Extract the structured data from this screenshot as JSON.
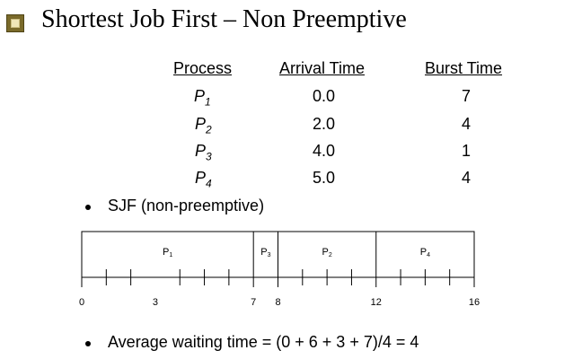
{
  "title": "Shortest Job First – Non Preemptive",
  "table": {
    "headers": [
      "Process",
      "Arrival Time",
      "Burst Time"
    ],
    "rows": [
      {
        "process": "P",
        "sub": "1",
        "arrival": "0.0",
        "burst": "7"
      },
      {
        "process": "P",
        "sub": "2",
        "arrival": "2.0",
        "burst": "4"
      },
      {
        "process": "P",
        "sub": "3",
        "arrival": "4.0",
        "burst": "1"
      },
      {
        "process": "P",
        "sub": "4",
        "arrival": "5.0",
        "burst": "4"
      }
    ]
  },
  "bullets": [
    "SJF (non-preemptive)",
    "Average waiting time = (0 + 6 + 3 + 7)/4  = 4"
  ],
  "gantt": {
    "segments": [
      {
        "label": "P",
        "sub": "1",
        "start": 0,
        "end": 7
      },
      {
        "label": "P",
        "sub": "3",
        "start": 7,
        "end": 8
      },
      {
        "label": "P",
        "sub": "2",
        "start": 8,
        "end": 12
      },
      {
        "label": "P",
        "sub": "4",
        "start": 12,
        "end": 16
      }
    ],
    "time_labels": [
      "0",
      "3",
      "7",
      "8",
      "12",
      "16"
    ],
    "time_values": [
      0,
      3,
      7,
      8,
      12,
      16
    ],
    "total": 16
  }
}
